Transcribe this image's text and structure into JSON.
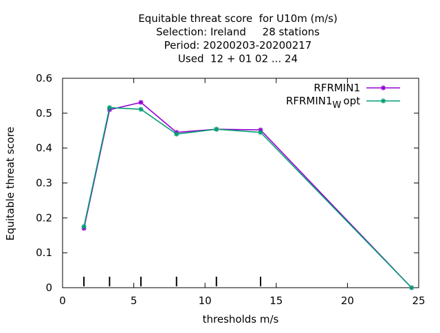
{
  "chart_data": {
    "type": "line",
    "title_lines": [
      "Equitable threat score  for U10m (m/s)",
      "Selection: Ireland     28 stations",
      "Period: 20200203-20200217",
      "Used  12 + 01 02 ... 24"
    ],
    "xlabel": "thresholds m/s",
    "ylabel": "Equitable threat score",
    "xlim": [
      0,
      25
    ],
    "ylim": [
      0,
      0.6
    ],
    "x_ticks": [
      0,
      5,
      10,
      15,
      20,
      25
    ],
    "x_tick_labels": [
      "0",
      "5",
      "10",
      "15",
      "20",
      "25"
    ],
    "y_ticks": [
      0,
      0.1,
      0.2,
      0.3,
      0.4,
      0.5,
      0.6
    ],
    "y_tick_labels": [
      "0",
      "0.1",
      "0.2",
      "0.3",
      "0.4",
      "0.5",
      "0.6"
    ],
    "threshold_markers": [
      1.5,
      3.3,
      5.5,
      8,
      10.8,
      13.9
    ],
    "grid": false,
    "legend_position": "top-right",
    "series": [
      {
        "name": "RFRMIN1",
        "legend_main": "RFRMIN1",
        "legend_sub": "",
        "legend_tail": "",
        "color": "#9400d3",
        "x": [
          1.5,
          3.3,
          5.5,
          8,
          10.8,
          13.9,
          24.5
        ],
        "values": [
          0.17,
          0.51,
          0.531,
          0.445,
          0.454,
          0.452,
          0.0
        ]
      },
      {
        "name": "RFRMIN1_W opt",
        "legend_main": "RFRMIN1",
        "legend_sub": "W",
        "legend_tail": "opt",
        "color": "#009e73",
        "x": [
          1.5,
          3.3,
          5.5,
          8,
          10.8,
          13.9,
          24.5
        ],
        "values": [
          0.175,
          0.516,
          0.511,
          0.44,
          0.454,
          0.445,
          0.0
        ]
      }
    ]
  }
}
